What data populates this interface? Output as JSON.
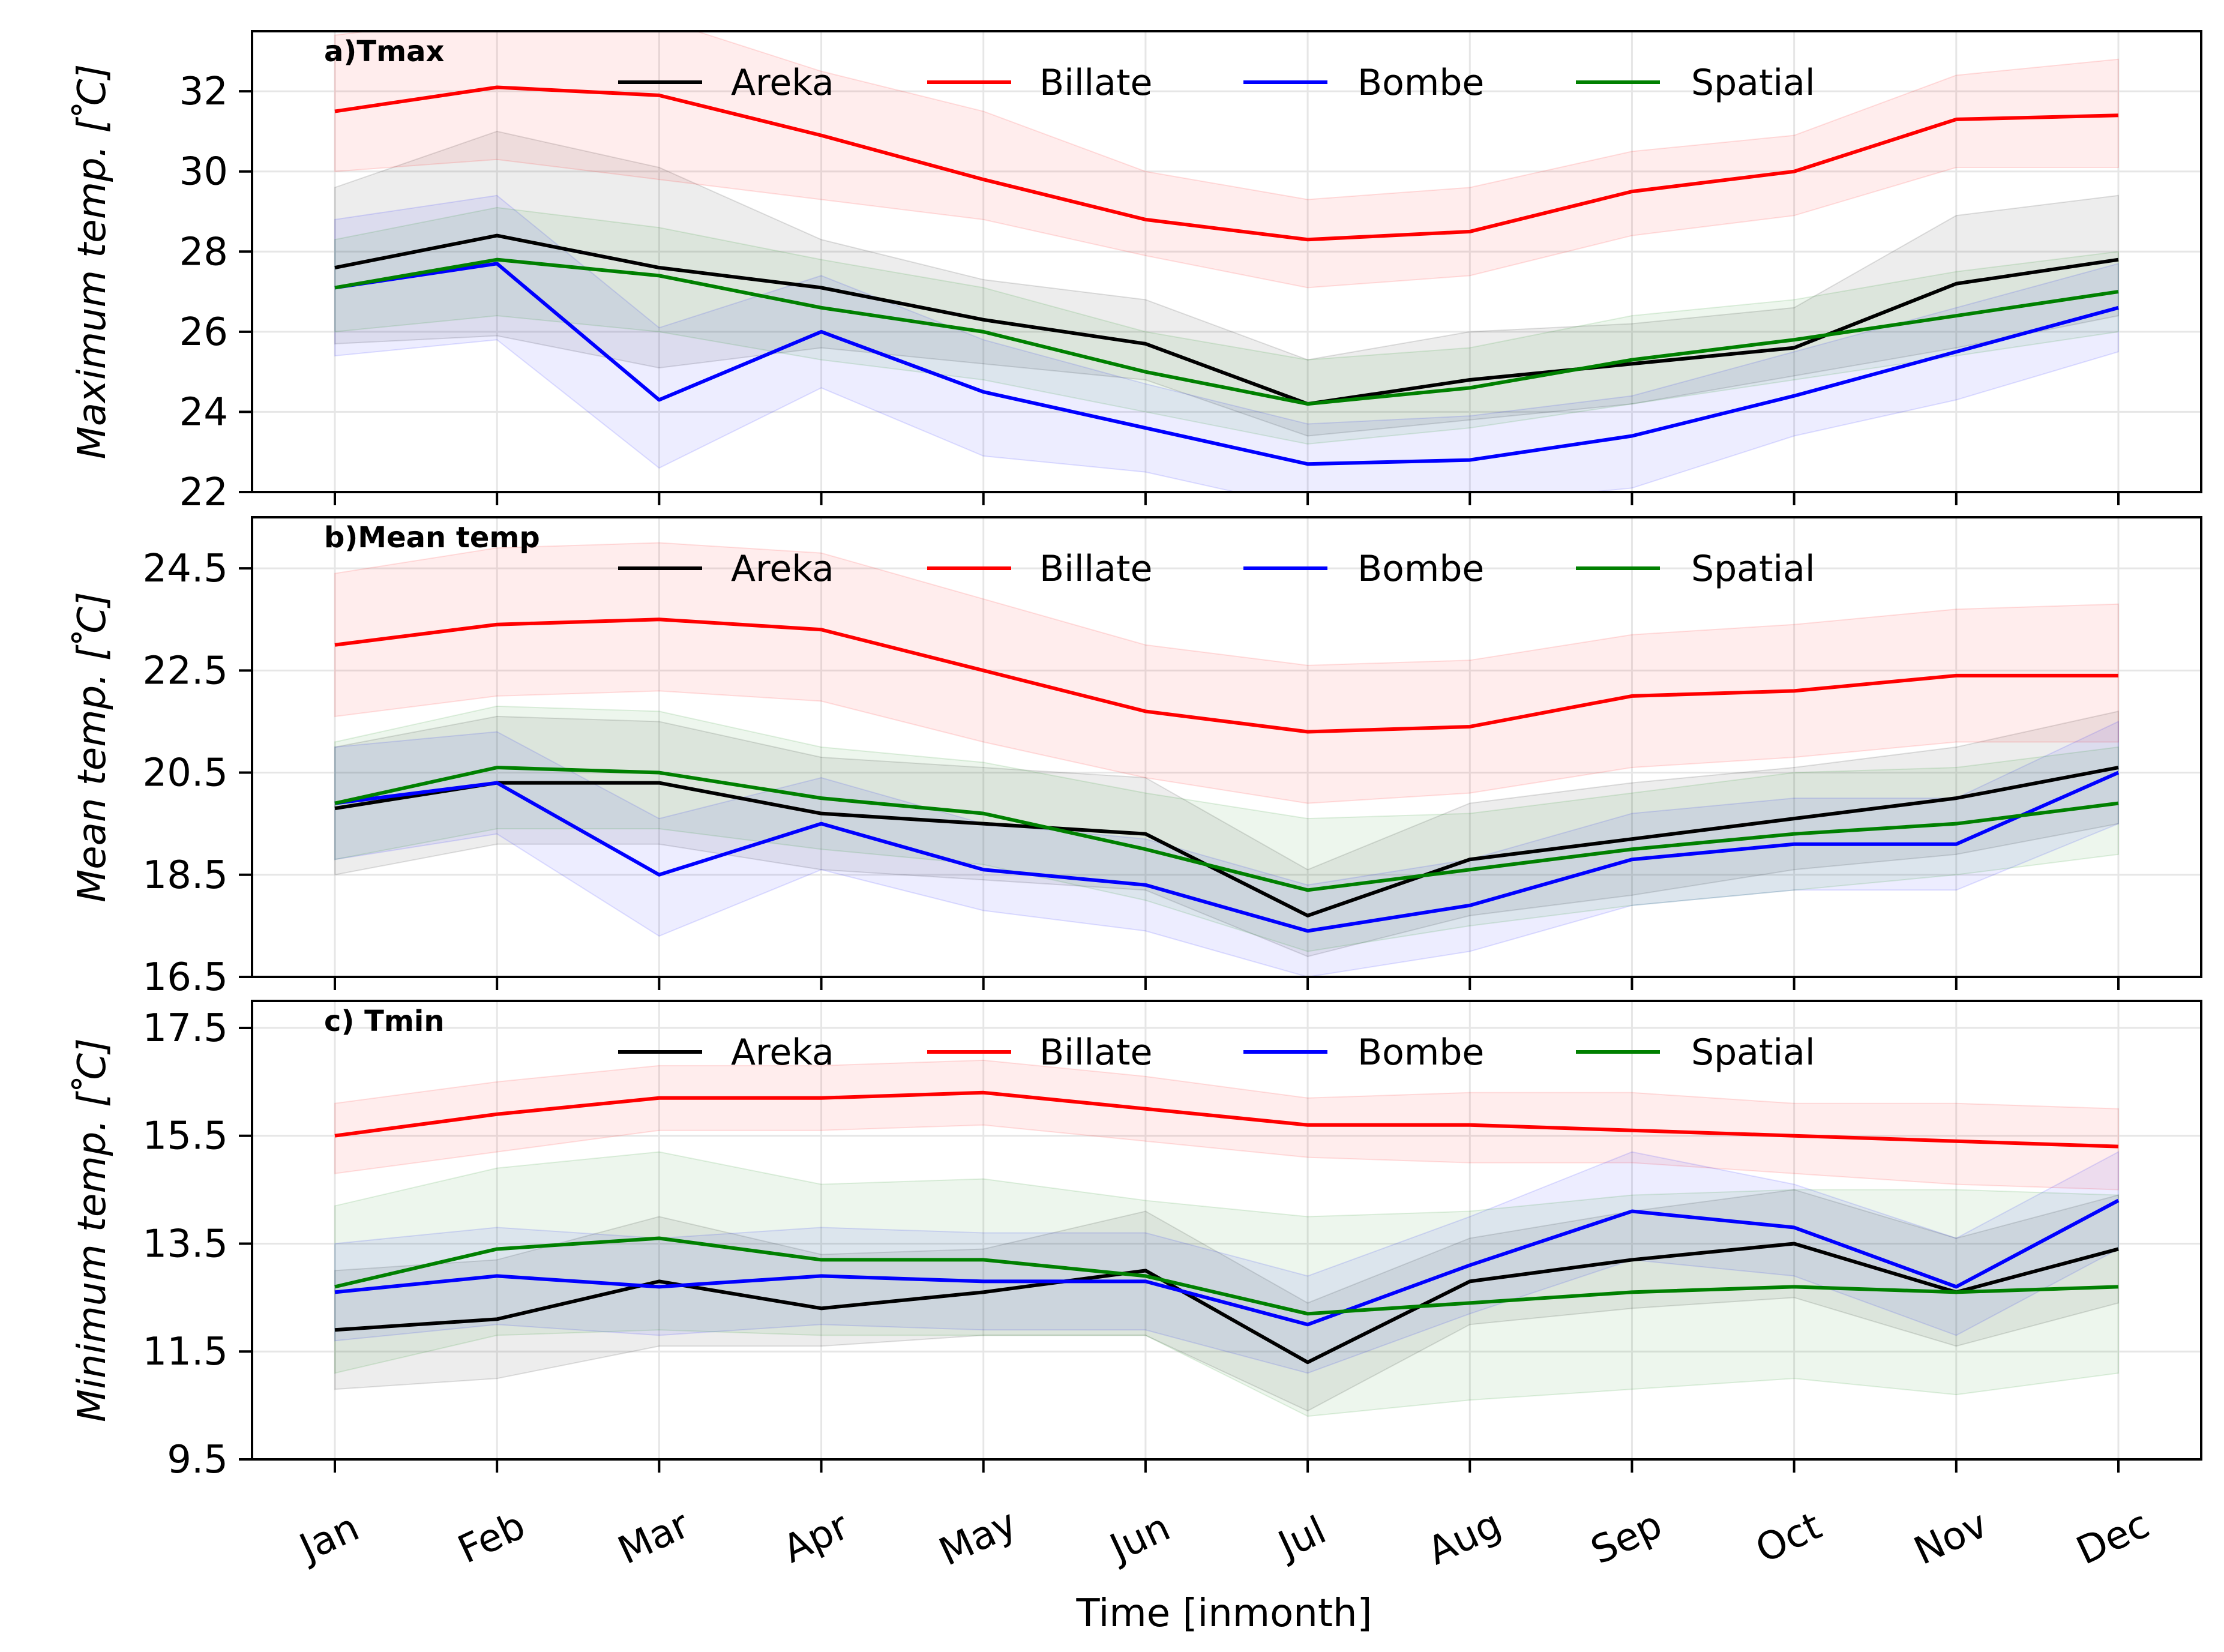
{
  "chart_data": {
    "type": "line",
    "xlabel": "Time [inmonth]",
    "months": [
      "Jan",
      "Feb",
      "Mar",
      "Apr",
      "May",
      "Jun",
      "Jul",
      "Aug",
      "Sep",
      "Oct",
      "Nov",
      "Dec"
    ],
    "legend_placement": "top-center",
    "grid": true,
    "colors": {
      "Areka": "#000000",
      "Billate": "#ff0000",
      "Bombe": "#0000ff",
      "Spatial": "#008000"
    },
    "panels": [
      {
        "title": "a)Tmax",
        "ylabel": "Maximum temp. [ ̊C]",
        "ylim": [
          22,
          33.5
        ],
        "yticks": [
          "22",
          "24",
          "26",
          "28",
          "30",
          "32"
        ],
        "series": [
          {
            "name": "Areka",
            "values": [
              27.6,
              28.4,
              27.6,
              27.1,
              26.3,
              25.7,
              24.2,
              24.8,
              25.2,
              25.6,
              27.2,
              27.8
            ],
            "lower": [
              25.7,
              25.9,
              25.1,
              25.6,
              25.2,
              24.8,
              23.4,
              23.8,
              24.2,
              24.9,
              25.6,
              26.4
            ],
            "upper": [
              29.6,
              31.0,
              30.1,
              28.3,
              27.3,
              26.8,
              25.3,
              26.0,
              26.2,
              26.6,
              28.9,
              29.4
            ]
          },
          {
            "name": "Billate",
            "values": [
              31.5,
              32.1,
              31.9,
              30.9,
              29.8,
              28.8,
              28.3,
              28.5,
              29.5,
              30.0,
              31.3,
              31.4
            ],
            "lower": [
              30.0,
              30.3,
              29.8,
              29.3,
              28.8,
              27.9,
              27.1,
              27.4,
              28.4,
              28.9,
              30.1,
              30.1
            ],
            "upper": [
              33.4,
              33.9,
              33.8,
              32.5,
              31.5,
              30.0,
              29.3,
              29.6,
              30.5,
              30.9,
              32.4,
              32.8
            ]
          },
          {
            "name": "Bombe",
            "values": [
              27.1,
              27.7,
              24.3,
              26.0,
              24.5,
              23.6,
              22.7,
              22.8,
              23.4,
              24.4,
              25.5,
              26.6
            ],
            "lower": [
              25.4,
              25.8,
              22.6,
              24.6,
              22.9,
              22.5,
              21.6,
              21.7,
              22.1,
              23.4,
              24.3,
              25.5
            ],
            "upper": [
              28.8,
              29.4,
              26.1,
              27.4,
              25.8,
              24.7,
              23.7,
              23.9,
              24.4,
              25.5,
              26.6,
              27.7
            ]
          },
          {
            "name": "Spatial",
            "values": [
              27.1,
              27.8,
              27.4,
              26.6,
              26.0,
              25.0,
              24.2,
              24.6,
              25.3,
              25.8,
              26.4,
              27.0
            ],
            "lower": [
              26.0,
              26.4,
              26.0,
              25.3,
              24.8,
              24.0,
              23.2,
              23.6,
              24.2,
              24.8,
              25.4,
              26.0
            ],
            "upper": [
              28.3,
              29.1,
              28.6,
              27.8,
              27.1,
              26.0,
              25.3,
              25.6,
              26.4,
              26.8,
              27.5,
              28.0
            ]
          }
        ]
      },
      {
        "title": "b)Mean temp",
        "ylabel": "Mean temp. [ ̊C]",
        "ylim": [
          16.5,
          25.5
        ],
        "yticks": [
          "16.5",
          "18.5",
          "20.5",
          "22.5",
          "24.5"
        ],
        "series": [
          {
            "name": "Areka",
            "values": [
              19.8,
              20.3,
              20.3,
              19.7,
              19.5,
              19.3,
              17.7,
              18.8,
              19.2,
              19.6,
              20.0,
              20.6
            ],
            "lower": [
              18.5,
              19.1,
              19.1,
              18.6,
              18.4,
              18.2,
              16.9,
              17.7,
              18.1,
              18.6,
              18.9,
              19.5
            ],
            "upper": [
              21.0,
              21.6,
              21.5,
              20.8,
              20.6,
              20.4,
              18.6,
              19.9,
              20.3,
              20.6,
              21.0,
              21.7
            ]
          },
          {
            "name": "Billate",
            "values": [
              23.0,
              23.4,
              23.5,
              23.3,
              22.5,
              21.7,
              21.3,
              21.4,
              22.0,
              22.1,
              22.4,
              22.4
            ],
            "lower": [
              21.6,
              22.0,
              22.1,
              21.9,
              21.1,
              20.4,
              19.9,
              20.1,
              20.6,
              20.8,
              21.1,
              21.1
            ],
            "upper": [
              24.4,
              24.9,
              25.0,
              24.8,
              23.9,
              23.0,
              22.6,
              22.7,
              23.2,
              23.4,
              23.7,
              23.8
            ]
          },
          {
            "name": "Bombe",
            "values": [
              19.9,
              20.3,
              18.5,
              19.5,
              18.6,
              18.3,
              17.4,
              17.9,
              18.8,
              19.1,
              19.1,
              20.5
            ],
            "lower": [
              18.8,
              19.3,
              17.3,
              18.6,
              17.8,
              17.4,
              16.5,
              17.0,
              17.9,
              18.2,
              18.2,
              19.5
            ],
            "upper": [
              21.0,
              21.3,
              19.6,
              20.4,
              19.5,
              19.2,
              18.3,
              18.8,
              19.7,
              20.0,
              20.0,
              21.5
            ]
          },
          {
            "name": "Spatial",
            "values": [
              19.9,
              20.6,
              20.5,
              20.0,
              19.7,
              19.0,
              18.2,
              18.6,
              19.0,
              19.3,
              19.5,
              19.9
            ],
            "lower": [
              18.8,
              19.4,
              19.4,
              19.0,
              18.7,
              18.0,
              17.0,
              17.5,
              17.9,
              18.2,
              18.5,
              18.9
            ],
            "upper": [
              21.1,
              21.8,
              21.7,
              21.0,
              20.7,
              20.1,
              19.6,
              19.7,
              20.1,
              20.5,
              20.6,
              21.0
            ]
          }
        ]
      },
      {
        "title": "c) Tmin",
        "ylabel": "Minimum temp. [ ̊C]",
        "ylim": [
          9.5,
          18.0
        ],
        "yticks": [
          "9.5",
          "11.5",
          "13.5",
          "15.5",
          "17.5"
        ],
        "series": [
          {
            "name": "Areka",
            "values": [
              11.9,
              12.1,
              12.8,
              12.3,
              12.6,
              13.0,
              11.3,
              12.8,
              13.2,
              13.5,
              12.6,
              13.4
            ],
            "lower": [
              10.8,
              11.0,
              11.6,
              11.6,
              11.8,
              11.8,
              10.4,
              12.0,
              12.3,
              12.5,
              11.6,
              12.4
            ],
            "upper": [
              13.0,
              13.2,
              14.0,
              13.3,
              13.4,
              14.1,
              12.4,
              13.6,
              14.1,
              14.5,
              13.6,
              14.4
            ]
          },
          {
            "name": "Billate",
            "values": [
              15.5,
              15.9,
              16.2,
              16.2,
              16.3,
              16.0,
              15.7,
              15.7,
              15.6,
              15.5,
              15.4,
              15.3
            ],
            "lower": [
              14.8,
              15.2,
              15.6,
              15.6,
              15.7,
              15.4,
              15.1,
              15.0,
              15.0,
              14.8,
              14.6,
              14.5
            ],
            "upper": [
              16.1,
              16.5,
              16.8,
              16.8,
              16.9,
              16.6,
              16.2,
              16.3,
              16.3,
              16.1,
              16.1,
              16.0
            ]
          },
          {
            "name": "Bombe",
            "values": [
              12.6,
              12.9,
              12.7,
              12.9,
              12.8,
              12.8,
              12.0,
              13.1,
              14.1,
              13.8,
              12.7,
              14.3
            ],
            "lower": [
              11.7,
              12.0,
              11.8,
              12.0,
              11.9,
              11.9,
              11.1,
              12.2,
              13.2,
              12.9,
              11.8,
              13.4
            ],
            "upper": [
              13.5,
              13.8,
              13.6,
              13.8,
              13.7,
              13.7,
              12.9,
              14.0,
              15.2,
              14.6,
              13.6,
              15.2
            ]
          },
          {
            "name": "Spatial",
            "values": [
              12.7,
              13.4,
              13.6,
              13.2,
              13.2,
              12.9,
              12.2,
              12.4,
              12.6,
              12.7,
              12.6,
              12.7
            ],
            "lower": [
              11.1,
              11.8,
              11.9,
              11.8,
              11.8,
              11.8,
              10.3,
              10.6,
              10.8,
              11.0,
              10.7,
              11.1
            ],
            "upper": [
              14.2,
              14.9,
              15.2,
              14.6,
              14.7,
              14.3,
              14.0,
              14.1,
              14.4,
              14.5,
              14.5,
              14.4
            ]
          }
        ]
      }
    ]
  }
}
